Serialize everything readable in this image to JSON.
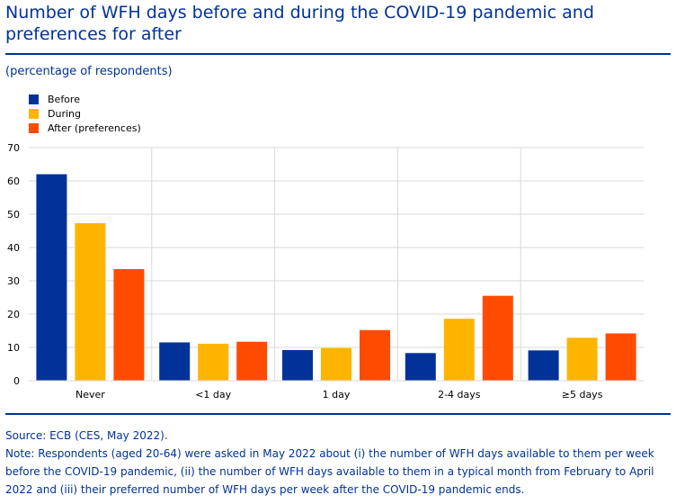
{
  "title": "Number of WFH days before and during the COVID-19 pandemic and preferences for after",
  "subtitle": "(percentage of respondents)",
  "source": "Source: ECB (CES, May 2022).",
  "note": "Note: Respondents (aged 20-64) were asked in May 2022 about (i) the number of WFH days available to them per week before the COVID-19 pandemic, (ii) the number of WFH days available to them in a typical month from February to April 2022 and (iii) their preferred number of WFH days per week after the COVID-19 pandemic ends.",
  "colors": {
    "accent": "#003299",
    "gridline": "#d9d9d9"
  },
  "chart_data": {
    "type": "bar",
    "title": "Number of WFH days before and during the COVID-19 pandemic and preferences for after",
    "ylabel": "(percentage of respondents)",
    "xlabel": "",
    "categories": [
      "Never",
      "<1 day",
      "1 day",
      "2-4 days",
      "≥5 days"
    ],
    "series": [
      {
        "name": "Before",
        "color": "#003299",
        "values": [
          62,
          11.5,
          9.2,
          8.3,
          9.1
        ]
      },
      {
        "name": "During",
        "color": "#ffb400",
        "values": [
          47.3,
          11.1,
          9.8,
          18.6,
          12.9
        ]
      },
      {
        "name": "After (preferences)",
        "color": "#ff4b00",
        "values": [
          33.5,
          11.7,
          15.2,
          25.5,
          14.2
        ]
      }
    ],
    "ylim": [
      0,
      70
    ],
    "yticks": [
      0,
      10,
      20,
      30,
      40,
      50,
      60,
      70
    ],
    "grid": true,
    "legend_position": "top-left"
  }
}
